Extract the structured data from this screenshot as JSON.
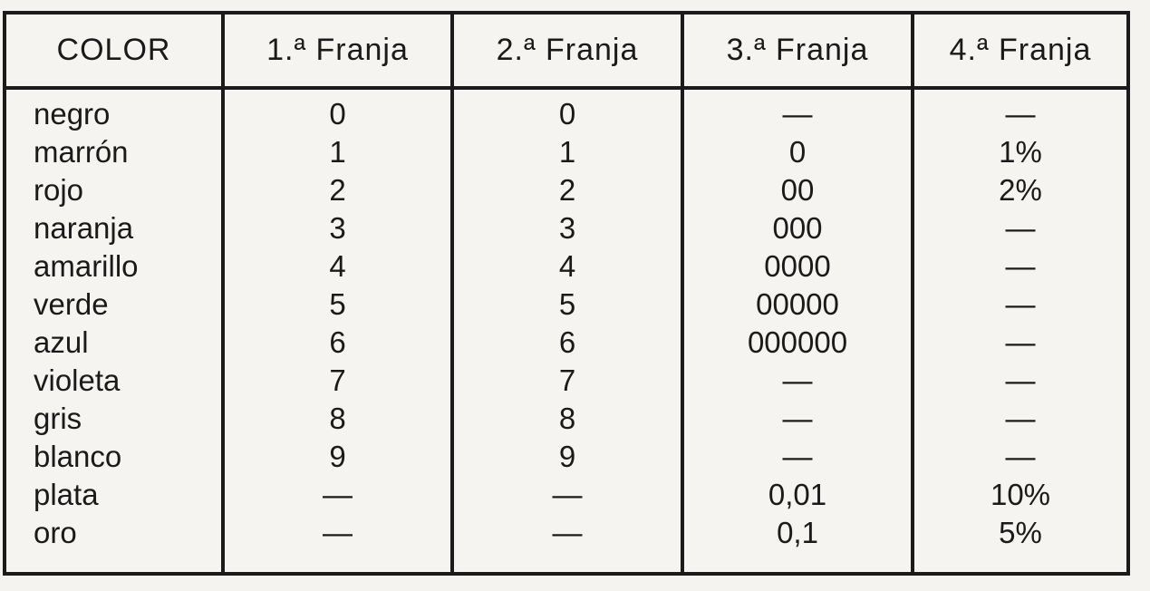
{
  "page": {
    "background_color": "#f4f3f0",
    "ink_color": "#1b1b1b"
  },
  "table": {
    "columns": [
      "COLOR",
      "1.ª Franja",
      "2.ª Franja",
      "3.ª Franja",
      "4.ª Franja"
    ],
    "rows": [
      {
        "color": "negro",
        "f1": "0",
        "f2": "0",
        "f3": "—",
        "f4": "—"
      },
      {
        "color": "marrón",
        "f1": "1",
        "f2": "1",
        "f3": "0",
        "f4": "1%"
      },
      {
        "color": "rojo",
        "f1": "2",
        "f2": "2",
        "f3": "00",
        "f4": "2%"
      },
      {
        "color": "naranja",
        "f1": "3",
        "f2": "3",
        "f3": "000",
        "f4": "—"
      },
      {
        "color": "amarillo",
        "f1": "4",
        "f2": "4",
        "f3": "0000",
        "f4": "—"
      },
      {
        "color": "verde",
        "f1": "5",
        "f2": "5",
        "f3": "00000",
        "f4": "—"
      },
      {
        "color": "azul",
        "f1": "6",
        "f2": "6",
        "f3": "000000",
        "f4": "—"
      },
      {
        "color": "violeta",
        "f1": "7",
        "f2": "7",
        "f3": "—",
        "f4": "—"
      },
      {
        "color": "gris",
        "f1": "8",
        "f2": "8",
        "f3": "—",
        "f4": "—"
      },
      {
        "color": "blanco",
        "f1": "9",
        "f2": "9",
        "f3": "—",
        "f4": "—"
      },
      {
        "color": "plata",
        "f1": "—",
        "f2": "—",
        "f3": "0,01",
        "f4": "10%"
      },
      {
        "color": "oro",
        "f1": "—",
        "f2": "—",
        "f3": "0,1",
        "f4": "5%"
      }
    ]
  },
  "chart_data": {
    "type": "table",
    "columns": [
      "COLOR",
      "1.ª Franja",
      "2.ª Franja",
      "3.ª Franja",
      "4.ª Franja"
    ],
    "rows": [
      [
        "negro",
        "0",
        "0",
        "—",
        "—"
      ],
      [
        "marrón",
        "1",
        "1",
        "0",
        "1%"
      ],
      [
        "rojo",
        "2",
        "2",
        "00",
        "2%"
      ],
      [
        "naranja",
        "3",
        "3",
        "000",
        "—"
      ],
      [
        "amarillo",
        "4",
        "4",
        "0000",
        "—"
      ],
      [
        "verde",
        "5",
        "5",
        "00000",
        "—"
      ],
      [
        "azul",
        "6",
        "6",
        "000000",
        "—"
      ],
      [
        "violeta",
        "7",
        "7",
        "—",
        "—"
      ],
      [
        "gris",
        "8",
        "8",
        "—",
        "—"
      ],
      [
        "blanco",
        "9",
        "9",
        "—",
        "—"
      ],
      [
        "plata",
        "—",
        "—",
        "0,01",
        "10%"
      ],
      [
        "oro",
        "—",
        "—",
        "0,1",
        "5%"
      ]
    ]
  }
}
